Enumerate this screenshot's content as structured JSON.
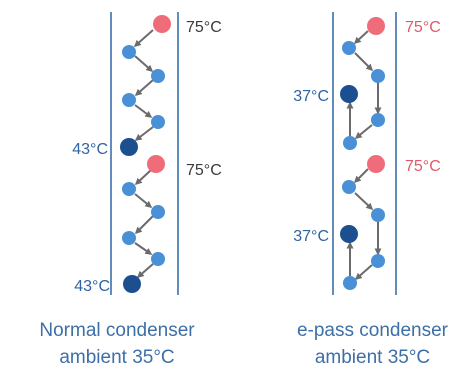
{
  "colors": {
    "hot_node": "#ef6d7a",
    "cold_node": "#1c4f8f",
    "mid_node": "#4a90d6",
    "wall_line": "#3d6fa8",
    "arrow": "#6b6b6b",
    "label_dark": "#3a3a3a",
    "label_blue": "#2f63a3",
    "label_red": "#e05a6a",
    "caption": "#3d6fa8"
  },
  "normal": {
    "top_inlet_temp": "75°C",
    "mid_inlet_temp": "75°C",
    "top_outlet_temp": "43°C",
    "bottom_outlet_temp": "43°C",
    "caption_line1": "Normal condenser",
    "caption_line2": "ambient 35°C"
  },
  "epass": {
    "top_inlet_temp": "75°C",
    "mid_inlet_temp": "75°C",
    "top_outlet_temp": "37°C",
    "bottom_outlet_temp": "37°C",
    "caption_line1": "e-pass condenser",
    "caption_line2": "ambient 35°C"
  }
}
